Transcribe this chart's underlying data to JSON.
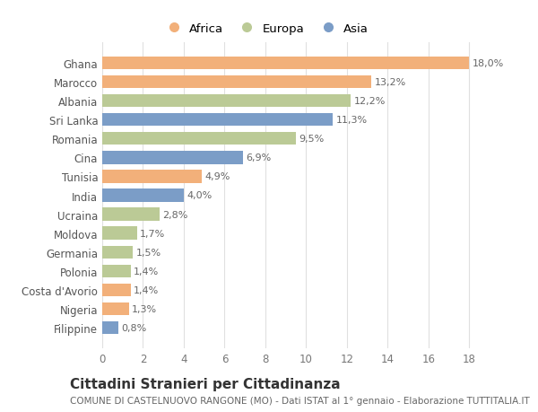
{
  "countries": [
    "Ghana",
    "Marocco",
    "Albania",
    "Sri Lanka",
    "Romania",
    "Cina",
    "Tunisia",
    "India",
    "Ucraina",
    "Moldova",
    "Germania",
    "Polonia",
    "Costa d'Avorio",
    "Nigeria",
    "Filippine"
  ],
  "values": [
    18.0,
    13.2,
    12.2,
    11.3,
    9.5,
    6.9,
    4.9,
    4.0,
    2.8,
    1.7,
    1.5,
    1.4,
    1.4,
    1.3,
    0.8
  ],
  "labels": [
    "18,0%",
    "13,2%",
    "12,2%",
    "11,3%",
    "9,5%",
    "6,9%",
    "4,9%",
    "4,0%",
    "2,8%",
    "1,7%",
    "1,5%",
    "1,4%",
    "1,4%",
    "1,3%",
    "0,8%"
  ],
  "continents": [
    "Africa",
    "Africa",
    "Europa",
    "Asia",
    "Europa",
    "Asia",
    "Africa",
    "Asia",
    "Europa",
    "Europa",
    "Europa",
    "Europa",
    "Africa",
    "Africa",
    "Asia"
  ],
  "colors": {
    "Africa": "#F2B07A",
    "Europa": "#BBCA96",
    "Asia": "#7B9DC7"
  },
  "title": "Cittadini Stranieri per Cittadinanza",
  "subtitle": "COMUNE DI CASTELNUOVO RANGONE (MO) - Dati ISTAT al 1° gennaio - Elaborazione TUTTITALIA.IT",
  "xlim": [
    0,
    19
  ],
  "xticks": [
    0,
    2,
    4,
    6,
    8,
    10,
    12,
    14,
    16,
    18
  ],
  "background_color": "#ffffff",
  "grid_color": "#e0e0e0",
  "bar_height": 0.68,
  "title_fontsize": 11,
  "subtitle_fontsize": 7.5,
  "label_fontsize": 8,
  "ytick_fontsize": 8.5,
  "xtick_fontsize": 8.5,
  "legend_fontsize": 9.5
}
